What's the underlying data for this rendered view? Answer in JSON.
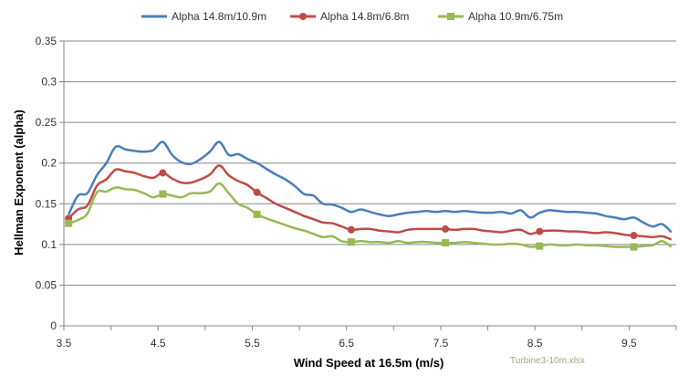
{
  "chart_data": {
    "type": "line",
    "title": "",
    "xlabel": "Wind Speed at 16.5m (m/s)",
    "ylabel": "Hellman Exponent (alpha)",
    "xlim": [
      3.5,
      10.0
    ],
    "ylim": [
      0,
      0.35
    ],
    "xticks": [
      "3.5",
      "4.5",
      "5.5",
      "6.5",
      "7.5",
      "8.5",
      "9.5"
    ],
    "yticks": [
      "0",
      "0.05",
      "0.1",
      "0.15",
      "0.2",
      "0.25",
      "0.3",
      "0.35"
    ],
    "grid": "horizontal",
    "legend_position": "top",
    "footnote": "Turbine3-10m.xlsx",
    "x": [
      3.55,
      3.65,
      3.75,
      3.85,
      3.95,
      4.05,
      4.15,
      4.25,
      4.35,
      4.45,
      4.55,
      4.65,
      4.75,
      4.85,
      4.95,
      5.05,
      5.15,
      5.25,
      5.35,
      5.45,
      5.55,
      5.65,
      5.75,
      5.85,
      5.95,
      6.05,
      6.15,
      6.25,
      6.35,
      6.45,
      6.55,
      6.65,
      6.75,
      6.85,
      6.95,
      7.05,
      7.15,
      7.25,
      7.35,
      7.45,
      7.55,
      7.65,
      7.75,
      7.85,
      7.95,
      8.05,
      8.15,
      8.25,
      8.35,
      8.45,
      8.55,
      8.65,
      8.75,
      8.85,
      8.95,
      9.05,
      9.15,
      9.25,
      9.35,
      9.45,
      9.55,
      9.65,
      9.75,
      9.85,
      9.95
    ],
    "series": [
      {
        "name": "Alpha 14.8m/10.9m",
        "color": "#4a7ebb",
        "marker": "none",
        "values": [
          0.137,
          0.16,
          0.163,
          0.185,
          0.2,
          0.22,
          0.217,
          0.215,
          0.214,
          0.216,
          0.226,
          0.21,
          0.201,
          0.199,
          0.205,
          0.214,
          0.226,
          0.21,
          0.211,
          0.205,
          0.2,
          0.193,
          0.186,
          0.18,
          0.172,
          0.162,
          0.16,
          0.15,
          0.149,
          0.145,
          0.14,
          0.143,
          0.14,
          0.137,
          0.135,
          0.137,
          0.139,
          0.14,
          0.141,
          0.14,
          0.141,
          0.14,
          0.141,
          0.14,
          0.139,
          0.139,
          0.14,
          0.138,
          0.142,
          0.133,
          0.139,
          0.142,
          0.141,
          0.14,
          0.14,
          0.139,
          0.138,
          0.135,
          0.133,
          0.131,
          0.133,
          0.127,
          0.122,
          0.125,
          0.115
        ]
      },
      {
        "name": "Alpha 14.8m/6.8m",
        "color": "#be4b48",
        "marker": "circle",
        "marker_points": [
          [
            3.55,
            0.132
          ],
          [
            4.55,
            0.188
          ],
          [
            5.55,
            0.164
          ],
          [
            6.55,
            0.118
          ],
          [
            7.55,
            0.119
          ],
          [
            8.55,
            0.116
          ],
          [
            9.55,
            0.111
          ]
        ],
        "values": [
          0.132,
          0.143,
          0.148,
          0.172,
          0.18,
          0.192,
          0.19,
          0.188,
          0.184,
          0.182,
          0.188,
          0.181,
          0.176,
          0.176,
          0.18,
          0.186,
          0.197,
          0.185,
          0.178,
          0.173,
          0.164,
          0.157,
          0.15,
          0.145,
          0.14,
          0.135,
          0.131,
          0.127,
          0.126,
          0.122,
          0.118,
          0.119,
          0.119,
          0.117,
          0.116,
          0.115,
          0.118,
          0.119,
          0.119,
          0.119,
          0.119,
          0.118,
          0.119,
          0.119,
          0.117,
          0.116,
          0.115,
          0.117,
          0.118,
          0.113,
          0.116,
          0.117,
          0.117,
          0.116,
          0.116,
          0.115,
          0.114,
          0.115,
          0.114,
          0.112,
          0.111,
          0.11,
          0.109,
          0.11,
          0.106
        ]
      },
      {
        "name": "Alpha 10.9m/6.75m",
        "color": "#98b954",
        "marker": "square",
        "marker_points": [
          [
            3.55,
            0.126
          ],
          [
            4.55,
            0.162
          ],
          [
            5.55,
            0.137
          ],
          [
            6.55,
            0.103
          ],
          [
            7.55,
            0.102
          ],
          [
            8.55,
            0.098
          ],
          [
            9.55,
            0.097
          ]
        ],
        "values": [
          0.126,
          0.13,
          0.138,
          0.164,
          0.165,
          0.17,
          0.168,
          0.167,
          0.163,
          0.158,
          0.162,
          0.16,
          0.158,
          0.163,
          0.163,
          0.165,
          0.175,
          0.163,
          0.15,
          0.145,
          0.137,
          0.132,
          0.128,
          0.124,
          0.12,
          0.117,
          0.113,
          0.109,
          0.11,
          0.104,
          0.103,
          0.104,
          0.103,
          0.103,
          0.102,
          0.104,
          0.102,
          0.103,
          0.103,
          0.102,
          0.102,
          0.102,
          0.103,
          0.102,
          0.101,
          0.1,
          0.1,
          0.101,
          0.1,
          0.097,
          0.098,
          0.1,
          0.099,
          0.099,
          0.1,
          0.099,
          0.099,
          0.098,
          0.097,
          0.097,
          0.097,
          0.098,
          0.099,
          0.104,
          0.097
        ]
      }
    ]
  }
}
